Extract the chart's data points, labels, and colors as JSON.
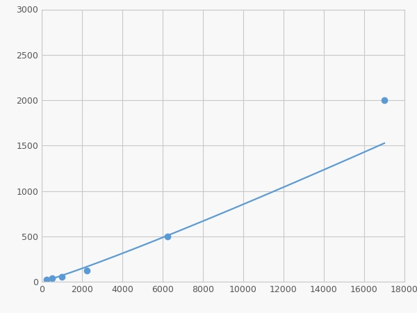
{
  "x": [
    250,
    500,
    1000,
    2250,
    6250,
    17000
  ],
  "y": [
    20,
    35,
    50,
    120,
    500,
    2000
  ],
  "line_color": "#5b9bd5",
  "marker_color": "#5b9bd5",
  "marker_size": 6,
  "line_width": 1.6,
  "xlim": [
    0,
    18000
  ],
  "ylim": [
    0,
    3000
  ],
  "xticks": [
    0,
    2000,
    4000,
    6000,
    8000,
    10000,
    12000,
    14000,
    16000,
    18000
  ],
  "yticks": [
    0,
    500,
    1000,
    1500,
    2000,
    2500,
    3000
  ],
  "grid_color": "#c8c8c8",
  "background_color": "#f8f8f8",
  "tick_label_fontsize": 9,
  "tick_label_color": "#555555"
}
